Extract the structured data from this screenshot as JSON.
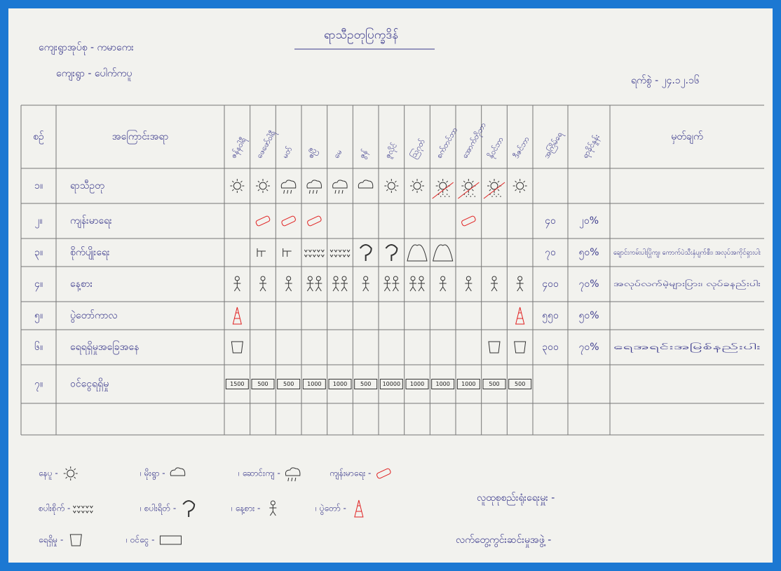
{
  "header": {
    "title": "ရာသီဥတုပြက္ခဒိန်",
    "group": "ကျေးရွာအုပ်စု - ကမာကေး",
    "village": "ကျေးရွာ - ပေါက်ကပူ",
    "date": "ရက်စွဲ - ၂၄.၁၂.၁၆"
  },
  "table": {
    "columns": [
      "စဉ်",
      "အကြောင်းအရာ",
      "ဇန်နဝါရီ",
      "ဖေဖော်ဝါရီ",
      "မတ်",
      "ဧပြီ",
      "မေ",
      "ဇွန်",
      "ဇူလိုင်",
      "ဩဂုတ်",
      "စက်တင်ဘာ",
      "အောက်တိုဘာ",
      "နိုဝင်ဘာ",
      "ဒီဇင်ဘာ",
      "အကြိမ်ရေ",
      "ရာခိုင်နှုန်း",
      "မှတ်ချက်"
    ],
    "rows": [
      {
        "no": "၁။",
        "topic": "ရာသီဥတု"
      },
      {
        "no": "၂။",
        "topic": "ကျန်းမာရေး",
        "count": "၄၀",
        "percent": "၂၀%"
      },
      {
        "no": "၃။",
        "topic": "စိုက်ပျိုးရေး",
        "count": "၇၀",
        "percent": "၅၀%",
        "note": "ချောင်းကမ်းပါးပြိုကျ၊ ကောက်ပဲသီးနှံပျက်စီး၊ အလုပ်အကိုင်ရှားပါး"
      },
      {
        "no": "၄။",
        "topic": "နေ့စား",
        "count": "၄၀၀",
        "percent": "၇၀%",
        "note": "အလုပ်လက်မဲ့များပြား၊ လုပ်ခနည်းပါး"
      },
      {
        "no": "၅။",
        "topic": "ပွဲတော်ကာလ",
        "count": "၅၅၀",
        "percent": "၅၀%"
      },
      {
        "no": "၆။",
        "topic": "ရေရရှိမှုအခြေအနေ",
        "count": "၃၀၀",
        "percent": "၇၀%",
        "note": "ရေအရင်းအမြစ်နည်းပါး"
      },
      {
        "no": "၇။",
        "topic": "ဝင်ငွေရရှိမှု"
      }
    ],
    "money": [
      "1500",
      "500",
      "500",
      "1000",
      "1000",
      "500",
      "10000",
      "1000",
      "1000",
      "1000",
      "500",
      "500"
    ]
  },
  "legend": [
    "နေပူ -",
    "၊ မိုးရွာ -",
    "၊ ဆောင်းကျ -",
    "ကျန်းမာရေး -",
    "စပါးစိုက် -",
    "၊ စပါးရိတ် -",
    "၊ နေ့စား -",
    "၊ ပွဲတော် -",
    "ရေရှိမှု -",
    "၊ ဝင်ငွေ -"
  ],
  "footer": [
    "လူထုစုစည်းရုံးရေးမှူး -",
    "လက်တွေ့ကွင်းဆင်းမှုအဖွဲ့ -"
  ]
}
